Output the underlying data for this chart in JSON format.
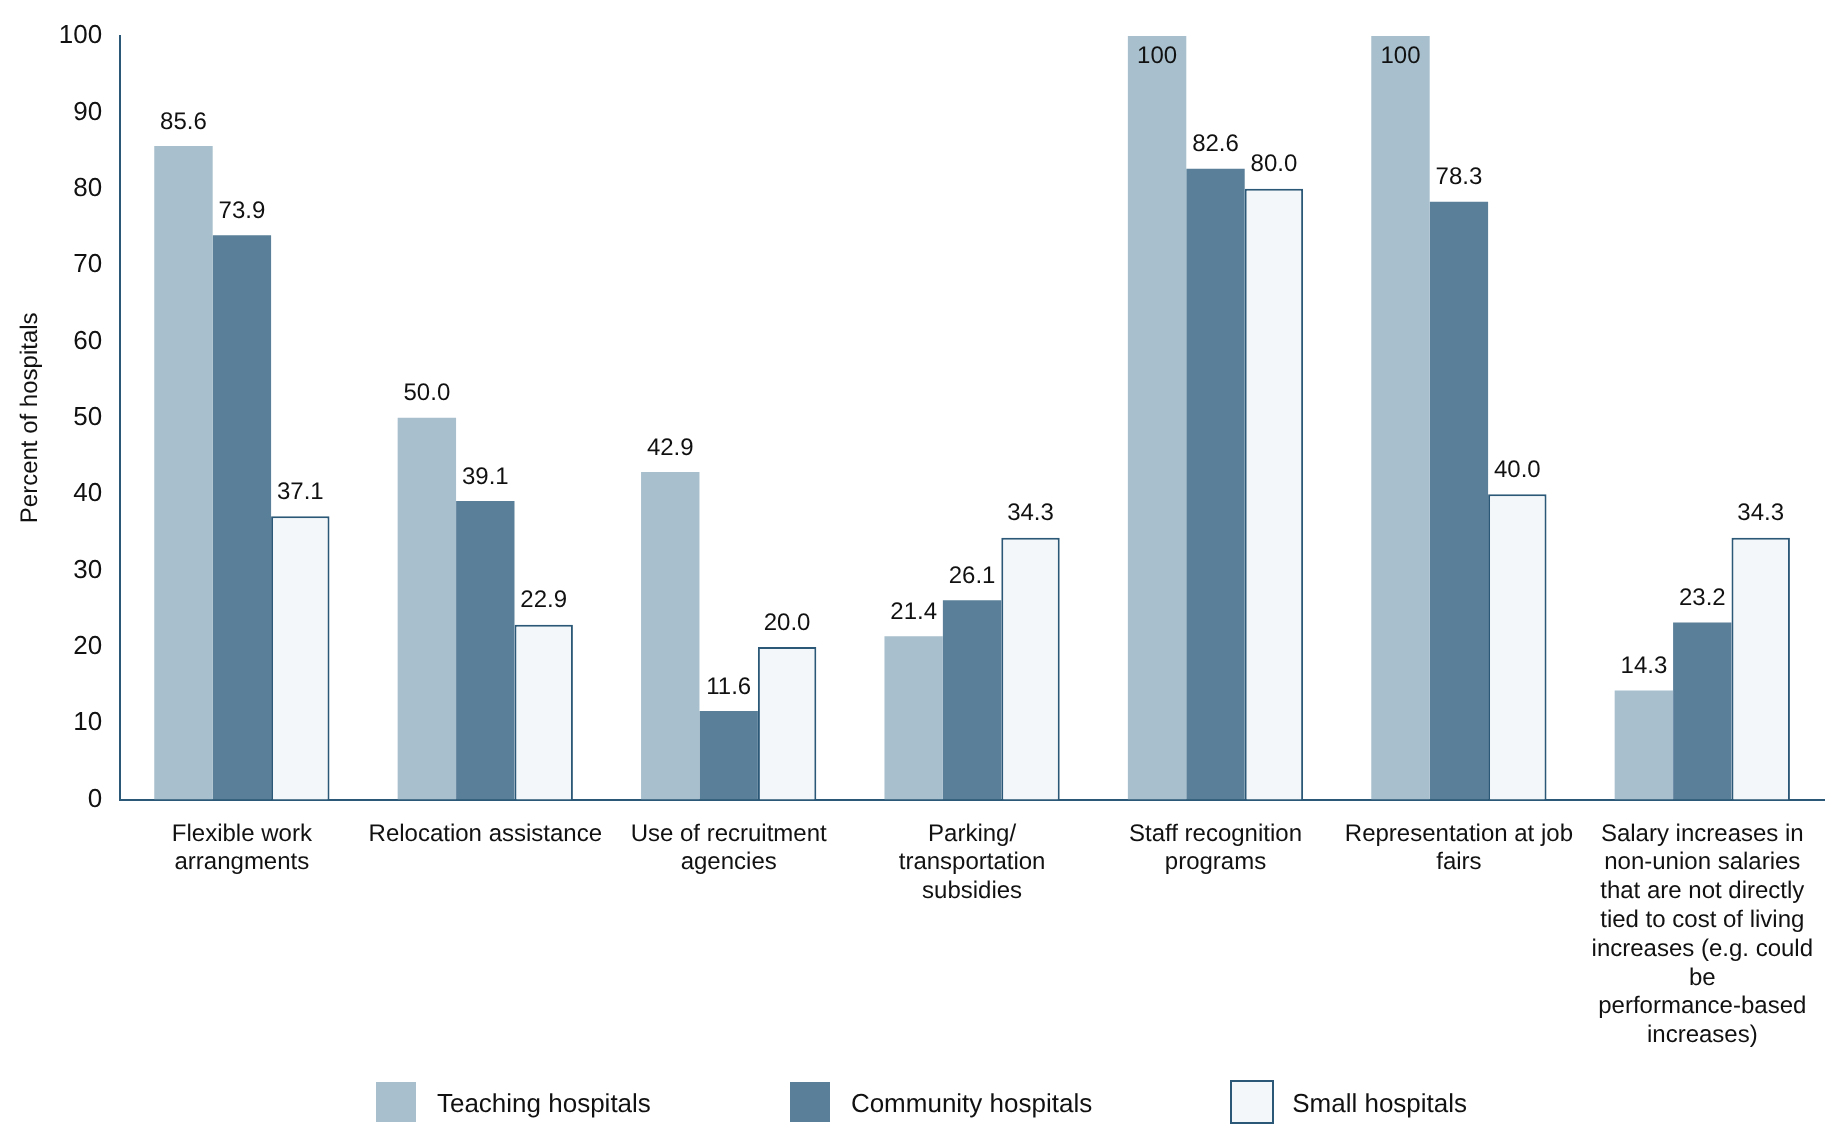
{
  "chart_data": {
    "type": "bar",
    "ylabel": "Percent of hospitals",
    "categories": [
      "Flexible work arrangments",
      "Relocation assistance",
      "Use of recruitment agencies",
      "Parking/ transportation subsidies",
      "Staff recognition programs",
      "Representation at job fairs",
      "Salary increases in non-union salaries that are not directly tied to cost of living increases (e.g. could be performance-based increases)"
    ],
    "series": [
      {
        "name": "Teaching hospitals",
        "color": "#a8bfcd",
        "values": [
          85.6,
          50.0,
          42.9,
          21.4,
          100,
          100,
          14.3
        ],
        "value_labels": [
          "85.6",
          "50.0",
          "42.9",
          "21.4",
          "100",
          "100",
          "14.3"
        ]
      },
      {
        "name": "Community hospitals",
        "color": "#5a7f99",
        "values": [
          73.9,
          39.1,
          11.6,
          26.1,
          82.6,
          78.3,
          23.2
        ],
        "value_labels": [
          "73.9",
          "39.1",
          "11.6",
          "26.1",
          "82.6",
          "78.3",
          "23.2"
        ]
      },
      {
        "name": "Small hospitals",
        "color": "#f3f7fa",
        "values": [
          37.1,
          22.9,
          20.0,
          34.3,
          80.0,
          40.0,
          34.3
        ],
        "value_labels": [
          "37.1",
          "22.9",
          "20.0",
          "34.3",
          "80.0",
          "40.0",
          "34.3"
        ]
      }
    ],
    "ylim": [
      0,
      100
    ],
    "yticks": [
      0,
      10,
      20,
      30,
      40,
      50,
      60,
      70,
      80,
      90,
      100
    ],
    "grid": false,
    "legend": "bottom"
  }
}
